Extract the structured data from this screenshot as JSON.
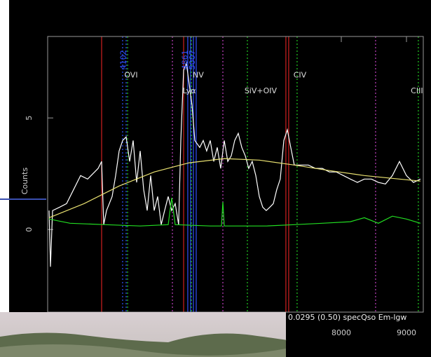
{
  "chart_data": {
    "type": "line",
    "ylabel": "Counts",
    "info": "0.0295 (0.50) specQso Em-lgw",
    "xlim": [
      3495,
      9258
    ],
    "ylim": [
      -3.7,
      8.65
    ],
    "xticks": [
      8000,
      9000
    ],
    "yticks": [
      0,
      5
    ],
    "series": [
      {
        "color": "#ffffff",
        "x": [
          3517,
          3538,
          3570,
          3678,
          3785,
          3893,
          4000,
          4108,
          4215,
          4269,
          4323,
          4355,
          4398,
          4484,
          4538,
          4592,
          4645,
          4699,
          4753,
          4807,
          4860,
          4914,
          4968,
          5022,
          5075,
          5129,
          5183,
          5237,
          5290,
          5344,
          5398,
          5452,
          5505,
          5538,
          5581,
          5624,
          5667,
          5710,
          5753,
          5828,
          5882,
          5935,
          5989,
          6043,
          6097,
          6150,
          6204,
          6258,
          6312,
          6365,
          6419,
          6473,
          6527,
          6580,
          6634,
          6688,
          6742,
          6795,
          6849,
          6903,
          6957,
          7010,
          7064,
          7118,
          7172,
          7225,
          7279,
          7387,
          7494,
          7602,
          7709,
          7817,
          7924,
          8032,
          8139,
          8247,
          8354,
          8462,
          8569,
          8677,
          8784,
          8892,
          8999,
          9107,
          9214
        ],
        "values": [
          0.85,
          -1.67,
          0.85,
          1.0,
          1.16,
          1.79,
          2.42,
          2.26,
          2.58,
          2.74,
          3.05,
          0.22,
          0.85,
          1.48,
          2.42,
          3.52,
          3.99,
          4.15,
          3.05,
          3.99,
          2.11,
          3.52,
          1.79,
          0.85,
          2.42,
          0.85,
          1.48,
          0.22,
          0.85,
          1.48,
          0.85,
          1.16,
          0.22,
          3.99,
          7.14,
          7.45,
          6.51,
          5.57,
          3.99,
          3.68,
          3.99,
          3.52,
          3.99,
          3.05,
          3.68,
          2.74,
          3.99,
          3.05,
          3.3,
          3.99,
          4.31,
          3.68,
          3.3,
          2.74,
          3.05,
          2.42,
          1.48,
          1.0,
          0.85,
          1.0,
          1.16,
          1.79,
          2.26,
          3.99,
          4.47,
          3.68,
          2.89,
          2.89,
          2.89,
          2.74,
          2.74,
          2.58,
          2.58,
          2.42,
          2.26,
          2.11,
          2.26,
          2.26,
          2.11,
          2.04,
          2.42,
          3.05,
          2.42,
          2.11,
          2.26
        ]
      },
      {
        "color": "#e8e070",
        "x": [
          3517,
          4054,
          4592,
          5129,
          5667,
          6204,
          6742,
          7279,
          7817,
          8354,
          8892,
          9214
        ],
        "values": [
          0.53,
          1.16,
          1.95,
          2.58,
          2.99,
          3.18,
          3.11,
          2.89,
          2.64,
          2.42,
          2.26,
          2.17
        ]
      },
      {
        "color": "#22dd22",
        "x": [
          3517,
          3839,
          4377,
          4914,
          5344,
          5398,
          5452,
          5989,
          6161,
          6183,
          6204,
          6849,
          7279,
          7709,
          8139,
          8354,
          8569,
          8784,
          8999,
          9214
        ],
        "values": [
          0.47,
          0.28,
          0.22,
          0.16,
          0.22,
          1.42,
          0.22,
          0.16,
          0.16,
          1.23,
          0.16,
          0.16,
          0.22,
          0.28,
          0.35,
          0.53,
          0.28,
          0.6,
          0.47,
          0.28
        ]
      }
    ],
    "vlines": [
      {
        "x": 4323,
        "color": "#d02020",
        "dashed": false
      },
      {
        "x": 5581,
        "color": "#d02020",
        "dashed": false
      },
      {
        "x": 7150,
        "color": "#d02020",
        "dashed": false
      },
      {
        "x": 7193,
        "color": "#d02020",
        "dashed": false
      },
      {
        "x": 4645,
        "color": "#3050ff",
        "dashed": true
      },
      {
        "x": 4699,
        "color": "#3050ff",
        "dashed": true
      },
      {
        "x": 5645,
        "color": "#3050ff",
        "dashed": false
      },
      {
        "x": 5688,
        "color": "#3050ff",
        "dashed": false
      },
      {
        "x": 5731,
        "color": "#3050ff",
        "dashed": false
      },
      {
        "x": 5774,
        "color": "#3050ff",
        "dashed": false
      },
      {
        "x": 4721,
        "color": "#22cc22",
        "dashed": true
      },
      {
        "x": 5699,
        "color": "#22cc22",
        "dashed": true
      },
      {
        "x": 6559,
        "color": "#22cc22",
        "dashed": true
      },
      {
        "x": 7322,
        "color": "#22cc22",
        "dashed": true
      },
      {
        "x": 9182,
        "color": "#22cc22",
        "dashed": true
      },
      {
        "x": 5409,
        "color": "#c040c0",
        "dashed": true
      },
      {
        "x": 6183,
        "color": "#c040c0",
        "dashed": true
      },
      {
        "x": 8526,
        "color": "#c040c0",
        "dashed": true
      }
    ],
    "annotations": [
      {
        "text": "OVI",
        "x": 4774,
        "y": 6.9,
        "color": "#dddddd",
        "vertical": false
      },
      {
        "text": "NV",
        "x": 5806,
        "y": 6.9,
        "color": "#dddddd",
        "vertical": false
      },
      {
        "text": "Lyα",
        "x": 5667,
        "y": 6.2,
        "color": "#dddddd",
        "vertical": false
      },
      {
        "text": "SiV+OIV",
        "x": 6763,
        "y": 6.2,
        "color": "#dddddd",
        "vertical": false
      },
      {
        "text": "CIV",
        "x": 7365,
        "y": 6.9,
        "color": "#dddddd",
        "vertical": false
      },
      {
        "text": "CIII",
        "x": 9160,
        "y": 6.2,
        "color": "#dddddd",
        "vertical": false
      },
      {
        "text": "4102",
        "x": 4660,
        "y": 7.6,
        "color": "#3050ff",
        "vertical": true
      },
      {
        "text": "4861",
        "x": 5610,
        "y": 7.6,
        "color": "#3050ff",
        "vertical": true
      },
      {
        "text": "5007",
        "x": 5720,
        "y": 7.6,
        "color": "#3050ff",
        "vertical": true
      }
    ]
  }
}
